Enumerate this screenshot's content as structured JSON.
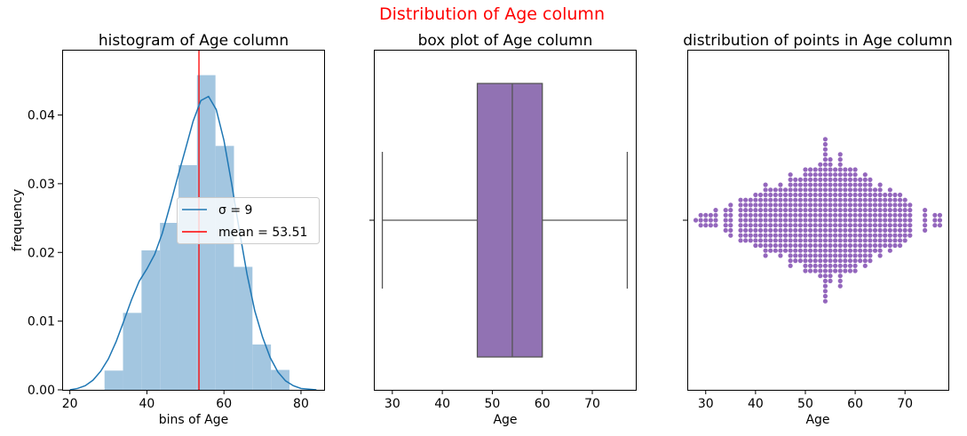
{
  "suptitle": "Distribution of Age column",
  "colors": {
    "suptitle": "#ff0000",
    "hist_fill": "#a3c6e0",
    "kde_line": "#1f77b4",
    "mean_line": "#ff0000",
    "box_fill": "#9172b3",
    "box_line": "#555555",
    "swarm_dot": "#9467bd"
  },
  "chart_data": [
    {
      "type": "histogram",
      "title": "histogram of Age column",
      "xlabel": "bins of Age",
      "ylabel": "frequency",
      "xlim": [
        18,
        86
      ],
      "ylim": [
        0,
        0.0495
      ],
      "xticks": [
        20,
        40,
        60,
        80
      ],
      "yticks": [
        0.0,
        0.01,
        0.02,
        0.03,
        0.04
      ],
      "ytick_labels": [
        "0.00",
        "0.01",
        "0.02",
        "0.03",
        "0.04"
      ],
      "bins": [
        {
          "x0": 29.0,
          "x1": 33.8,
          "value": 0.0028
        },
        {
          "x0": 33.8,
          "x1": 38.6,
          "value": 0.0112
        },
        {
          "x0": 38.6,
          "x1": 43.4,
          "value": 0.0203
        },
        {
          "x0": 43.4,
          "x1": 48.2,
          "value": 0.0243
        },
        {
          "x0": 48.2,
          "x1": 53.0,
          "value": 0.0327
        },
        {
          "x0": 53.0,
          "x1": 57.8,
          "value": 0.0458
        },
        {
          "x0": 57.8,
          "x1": 62.6,
          "value": 0.0355
        },
        {
          "x0": 62.6,
          "x1": 67.4,
          "value": 0.0179
        },
        {
          "x0": 67.4,
          "x1": 72.2,
          "value": 0.0066
        },
        {
          "x0": 72.2,
          "x1": 77.0,
          "value": 0.0029
        }
      ],
      "kde": {
        "x": [
          20,
          22,
          24,
          26,
          28,
          30,
          32,
          34,
          36,
          38,
          40,
          42,
          44,
          46,
          48,
          50,
          52,
          54,
          56,
          58,
          60,
          62,
          64,
          66,
          68,
          70,
          72,
          74,
          76,
          78,
          80,
          82,
          84
        ],
        "y": [
          0.0,
          0.0002,
          0.0006,
          0.0014,
          0.0027,
          0.0045,
          0.007,
          0.01,
          0.0131,
          0.0158,
          0.0176,
          0.0197,
          0.0228,
          0.0268,
          0.031,
          0.035,
          0.0391,
          0.0421,
          0.0427,
          0.0408,
          0.0363,
          0.03,
          0.0232,
          0.0168,
          0.0115,
          0.0077,
          0.0047,
          0.0026,
          0.0013,
          0.0006,
          0.0002,
          0.0001,
          0.0
        ]
      },
      "mean": 53.51,
      "legend": {
        "placement": "center-right",
        "sigma_label": "σ = 9",
        "mean_label": "mean = 53.51"
      }
    },
    {
      "type": "box",
      "title": "box plot of Age column",
      "xlabel": "Age",
      "xlim": [
        26.3,
        78.7
      ],
      "xticks": [
        30,
        40,
        50,
        60,
        70
      ],
      "whisker_low": 28,
      "q1": 47,
      "median": 54,
      "q3": 60,
      "whisker_high": 77
    },
    {
      "type": "scatter",
      "title": "distribution of points in Age column",
      "xlabel": "Age",
      "xlim": [
        26.3,
        78.7
      ],
      "xticks": [
        30,
        40,
        50,
        60,
        70
      ],
      "swarm": {
        "ages": [
          28,
          29,
          30,
          31,
          32,
          34,
          35,
          37,
          38,
          39,
          40,
          41,
          42,
          43,
          44,
          45,
          46,
          47,
          48,
          49,
          50,
          51,
          52,
          53,
          54,
          55,
          56,
          57,
          58,
          59,
          60,
          61,
          62,
          63,
          64,
          65,
          66,
          67,
          68,
          69,
          70,
          71,
          74,
          76,
          77
        ],
        "counts": [
          1,
          3,
          3,
          3,
          4,
          5,
          7,
          9,
          9,
          9,
          11,
          11,
          15,
          13,
          13,
          15,
          13,
          19,
          17,
          17,
          21,
          21,
          21,
          23,
          33,
          25,
          21,
          27,
          21,
          21,
          21,
          17,
          19,
          17,
          13,
          15,
          11,
          13,
          11,
          11,
          9,
          7,
          5,
          3,
          3
        ]
      }
    }
  ]
}
